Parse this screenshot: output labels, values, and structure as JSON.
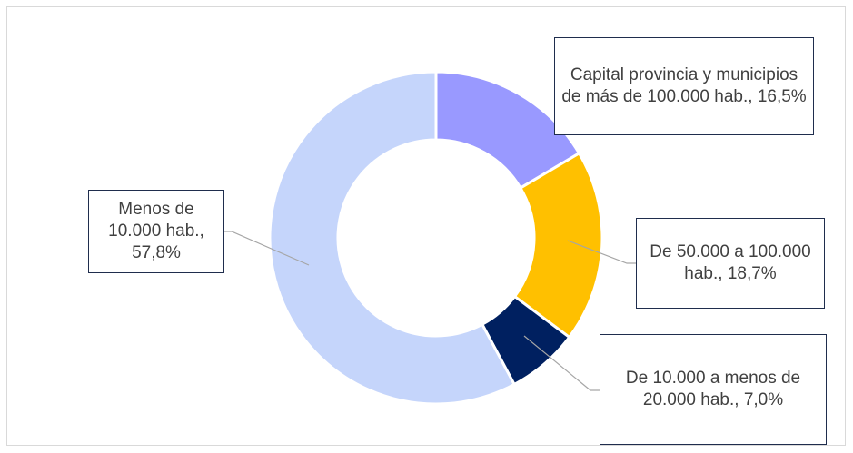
{
  "chart_data": {
    "type": "donut",
    "categories": [
      "Capital provincia y municipios de más de 100.000 hab.,",
      "De 50.000 a 100.000 hab.,",
      "De 10.000 a menos de 20.000 hab.,",
      "Menos de 10.000 hab.,"
    ],
    "values": [
      16.5,
      18.7,
      7.0,
      57.8
    ],
    "value_labels": [
      "16,5%",
      "18,7%",
      "7,0%",
      "57,8%"
    ],
    "colors": [
      "#9999ff",
      "#ffc000",
      "#002060",
      "#c5d5fb"
    ]
  }
}
